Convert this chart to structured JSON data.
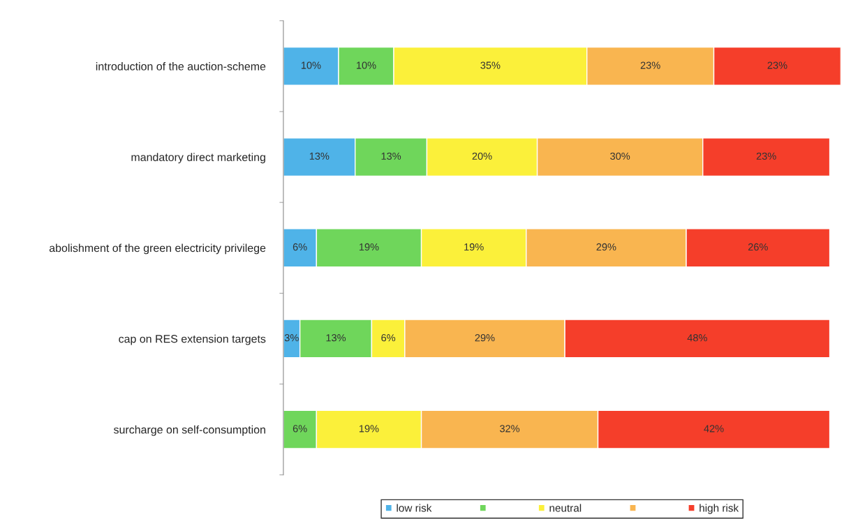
{
  "chart_data": {
    "type": "bar",
    "orientation": "horizontal",
    "stacked": true,
    "categories": [
      "introduction of the auction-scheme",
      "mandatory direct marketing",
      "abolishment of the green electricity privilege",
      "cap on RES extension targets",
      "surcharge on self-consumption"
    ],
    "series": [
      {
        "name": "low risk",
        "color": "#4fb3e8",
        "values": [
          10,
          13,
          6,
          3,
          0
        ],
        "value_labels": [
          "10%",
          "13%",
          "6%",
          "3%",
          null
        ]
      },
      {
        "color": "#6fd65b",
        "values": [
          10,
          13,
          19,
          13,
          6
        ],
        "value_labels": [
          "10%",
          "13%",
          "19%",
          "13%",
          "6%"
        ]
      },
      {
        "name": "neutral",
        "color": "#fbf03a",
        "values": [
          35,
          20,
          19,
          6,
          19
        ],
        "value_labels": [
          "35%",
          "20%",
          "19%",
          "6%",
          "19%"
        ]
      },
      {
        "color": "#f9b550",
        "values": [
          23,
          30,
          29,
          29,
          32
        ],
        "value_labels": [
          "23%",
          "30%",
          "29%",
          "29%",
          "32%"
        ]
      },
      {
        "name": "high risk",
        "color": "#f53e2a",
        "values": [
          23,
          23,
          26,
          48,
          42
        ],
        "value_labels": [
          "23%",
          "23%",
          "26%",
          "48%",
          "42%"
        ]
      }
    ],
    "xlim": [
      0,
      101
    ],
    "tick_labels": "y",
    "legend": "bottom",
    "grid": false
  }
}
